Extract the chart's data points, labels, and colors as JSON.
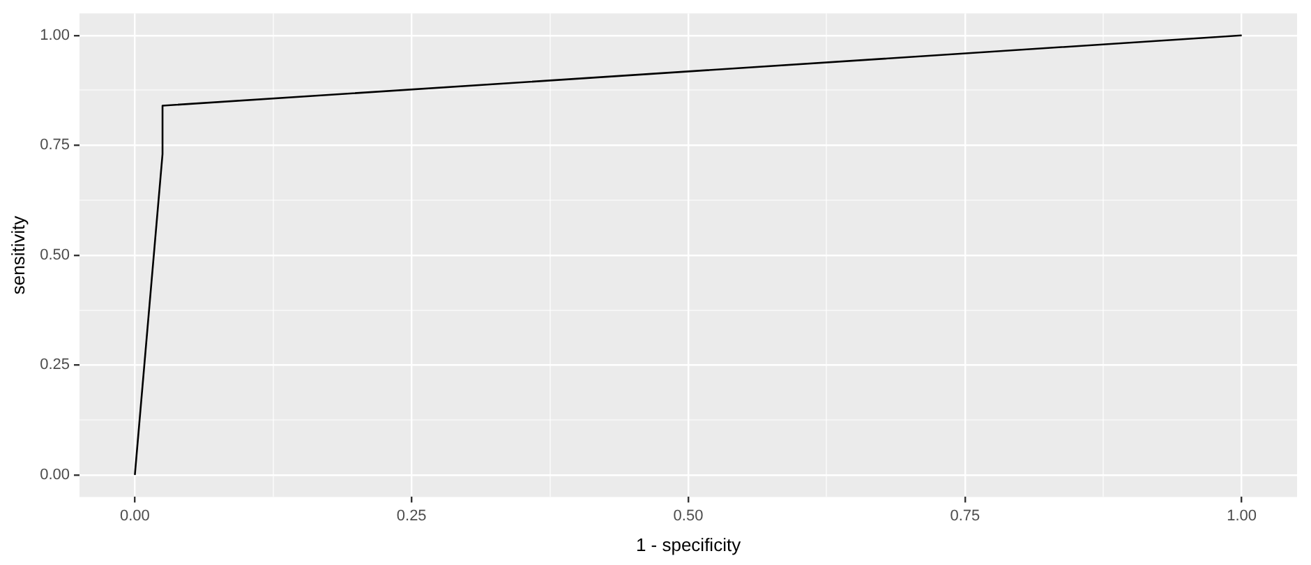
{
  "chart_data": {
    "type": "line",
    "xlabel": "1 - specificity",
    "ylabel": "sensitivity",
    "x": [
      0,
      0.025,
      0.025,
      1
    ],
    "series": [
      {
        "color": "#000000",
        "values": [
          0,
          0.73,
          0.84,
          1
        ]
      }
    ],
    "xlim": [
      -0.05,
      1.05
    ],
    "ylim": [
      -0.05,
      1.05
    ],
    "xticks": [
      {
        "value": 0,
        "label": "0.00"
      },
      {
        "value": 0.25,
        "label": "0.25"
      },
      {
        "value": 0.5,
        "label": "0.50"
      },
      {
        "value": 0.75,
        "label": "0.75"
      },
      {
        "value": 1,
        "label": "1.00"
      }
    ],
    "yticks": [
      {
        "value": 0,
        "label": "0.00"
      },
      {
        "value": 0.25,
        "label": "0.25"
      },
      {
        "value": 0.5,
        "label": "0.50"
      },
      {
        "value": 0.75,
        "label": "0.75"
      },
      {
        "value": 1,
        "label": "1.00"
      }
    ],
    "grid": true,
    "legend": false,
    "marker": "none",
    "line_style": "solid"
  }
}
